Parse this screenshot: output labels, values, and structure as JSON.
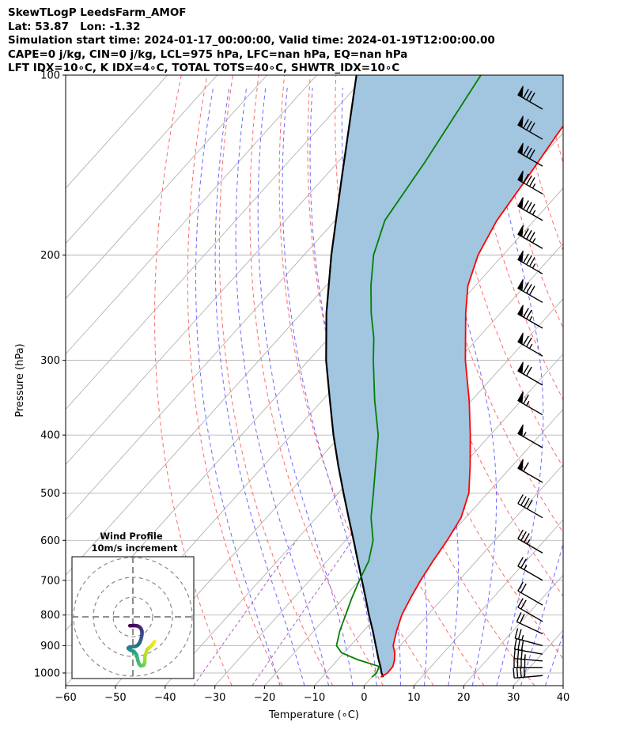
{
  "header": {
    "line1": "SkewTLogP LeedsFarm_AMOF",
    "line2": "Lat: 53.87   Lon: -1.32",
    "line3": "Simulation start time: 2024-01-17_00:00:00, Valid time: 2024-01-19T12:00:00.00",
    "line4": "CAPE=0 j/kg, CIN=0 j/kg, LCL=975 hPa, LFC=nan hPa, EQ=nan hPa",
    "line5": "LFT IDX=10∘C, K IDX=4∘C, TOTAL TOTS=40∘C, SHWTR_IDX=10∘C"
  },
  "chart_data": [
    {
      "type": "line",
      "subtype": "skew-T log-P",
      "xlabel": "Temperature (∘C)",
      "ylabel": "Pressure (hPa)",
      "xlim": [
        -60,
        40
      ],
      "ylim": [
        1050,
        100
      ],
      "y_scale": "log",
      "grid": true,
      "x_ticks": [
        -60,
        -50,
        -40,
        -30,
        -20,
        -10,
        0,
        10,
        20,
        30,
        40
      ],
      "x_tick_labels": [
        "−60",
        "−50",
        "−40",
        "−30",
        "−20",
        "−10",
        "0",
        "10",
        "20",
        "30",
        "40"
      ],
      "y_ticks": [
        100,
        200,
        300,
        400,
        500,
        600,
        700,
        800,
        900,
        1000
      ],
      "y_tick_labels": [
        "100",
        "200",
        "300",
        "400",
        "500",
        "600",
        "700",
        "800",
        "900",
        "1000"
      ],
      "colors": {
        "temperature": "#ff0000",
        "dewpoint": "#008000",
        "parcel": "#000000",
        "cape_fill": "#a2c5e0",
        "dry_adiabat": "#ff6a6a",
        "moist_adiabat": "#6a6aff",
        "mixing_ratio": "#b05ec8",
        "isotherm": "#aaaaaa"
      },
      "series": [
        {
          "key": "temperature",
          "points": [
            [
              1016,
              1.8
            ],
            [
              1000,
              2.4
            ],
            [
              975,
              2.3
            ],
            [
              950,
              1.4
            ],
            [
              925,
              0.2
            ],
            [
              900,
              -1.4
            ],
            [
              850,
              -3.4
            ],
            [
              800,
              -5.2
            ],
            [
              750,
              -6.5
            ],
            [
              700,
              -7.7
            ],
            [
              650,
              -8.7
            ],
            [
              600,
              -9.6
            ],
            [
              550,
              -10.9
            ],
            [
              500,
              -13.8
            ],
            [
              450,
              -18.5
            ],
            [
              400,
              -24.0
            ],
            [
              350,
              -30.5
            ],
            [
              300,
              -38.5
            ],
            [
              250,
              -47.0
            ],
            [
              225,
              -51.5
            ],
            [
              200,
              -55.0
            ],
            [
              175,
              -57.5
            ],
            [
              150,
              -59.0
            ],
            [
              125,
              -61.0
            ],
            [
              100,
              -63.0
            ]
          ]
        },
        {
          "key": "dewpoint",
          "points": [
            [
              1016,
              0.0
            ],
            [
              1000,
              0.2
            ],
            [
              975,
              -0.5
            ],
            [
              950,
              -6.0
            ],
            [
              925,
              -10.5
            ],
            [
              900,
              -12.8
            ],
            [
              850,
              -14.8
            ],
            [
              800,
              -16.5
            ],
            [
              750,
              -18.3
            ],
            [
              700,
              -20.0
            ],
            [
              650,
              -21.6
            ],
            [
              600,
              -24.5
            ],
            [
              550,
              -29.0
            ],
            [
              500,
              -33.0
            ],
            [
              450,
              -37.5
            ],
            [
              400,
              -42.5
            ],
            [
              350,
              -49.5
            ],
            [
              300,
              -57.0
            ],
            [
              275,
              -61.0
            ],
            [
              250,
              -66.0
            ],
            [
              225,
              -71.0
            ],
            [
              200,
              -76.0
            ],
            [
              175,
              -80.0
            ],
            [
              160,
              -81.0
            ],
            [
              140,
              -82.5
            ],
            [
              100,
              -87.0
            ]
          ]
        },
        {
          "key": "parcel",
          "points": [
            [
              1016,
              2.3
            ],
            [
              1000,
              1.2
            ],
            [
              975,
              -0.2
            ],
            [
              950,
              -1.8
            ],
            [
              900,
              -4.9
            ],
            [
              850,
              -8.2
            ],
            [
              800,
              -11.8
            ],
            [
              750,
              -15.5
            ],
            [
              700,
              -19.5
            ],
            [
              650,
              -23.8
            ],
            [
              600,
              -28.4
            ],
            [
              550,
              -33.5
            ],
            [
              500,
              -39.0
            ],
            [
              450,
              -45.0
            ],
            [
              400,
              -51.5
            ],
            [
              350,
              -58.5
            ],
            [
              300,
              -66.5
            ],
            [
              250,
              -75.0
            ],
            [
              200,
              -84.5
            ],
            [
              150,
              -96.0
            ],
            [
              100,
              -112.0
            ]
          ]
        }
      ],
      "wind_barbs": [
        {
          "p": 1010,
          "speed_kt": 40,
          "dir_deg": 265
        },
        {
          "p": 980,
          "speed_kt": 40,
          "dir_deg": 270
        },
        {
          "p": 955,
          "speed_kt": 35,
          "dir_deg": 275
        },
        {
          "p": 930,
          "speed_kt": 30,
          "dir_deg": 280
        },
        {
          "p": 900,
          "speed_kt": 25,
          "dir_deg": 285
        },
        {
          "p": 860,
          "speed_kt": 20,
          "dir_deg": 295
        },
        {
          "p": 820,
          "speed_kt": 20,
          "dir_deg": 300
        },
        {
          "p": 770,
          "speed_kt": 20,
          "dir_deg": 300
        },
        {
          "p": 700,
          "speed_kt": 25,
          "dir_deg": 300
        },
        {
          "p": 630,
          "speed_kt": 35,
          "dir_deg": 300
        },
        {
          "p": 550,
          "speed_kt": 40,
          "dir_deg": 300
        },
        {
          "p": 480,
          "speed_kt": 60,
          "dir_deg": 300
        },
        {
          "p": 420,
          "speed_kt": 55,
          "dir_deg": 300
        },
        {
          "p": 370,
          "speed_kt": 65,
          "dir_deg": 300
        },
        {
          "p": 330,
          "speed_kt": 70,
          "dir_deg": 300
        },
        {
          "p": 295,
          "speed_kt": 75,
          "dir_deg": 300
        },
        {
          "p": 265,
          "speed_kt": 75,
          "dir_deg": 300
        },
        {
          "p": 240,
          "speed_kt": 80,
          "dir_deg": 300
        },
        {
          "p": 215,
          "speed_kt": 85,
          "dir_deg": 300
        },
        {
          "p": 195,
          "speed_kt": 85,
          "dir_deg": 300
        },
        {
          "p": 175,
          "speed_kt": 85,
          "dir_deg": 300
        },
        {
          "p": 158,
          "speed_kt": 85,
          "dir_deg": 300
        },
        {
          "p": 142,
          "speed_kt": 80,
          "dir_deg": 300
        },
        {
          "p": 128,
          "speed_kt": 80,
          "dir_deg": 300
        },
        {
          "p": 114,
          "speed_kt": 80,
          "dir_deg": 300
        }
      ]
    },
    {
      "type": "scatter",
      "subtype": "hodograph",
      "title": "Wind Profile",
      "subtitle": "10m/s increment",
      "ring_step_ms": 10,
      "rings": [
        10,
        20,
        30
      ],
      "colormap": "viridis (low level yellow, upper level purple)",
      "points_uv": [
        [
          11.0,
          -12.5
        ],
        [
          9.5,
          -14.5
        ],
        [
          7.2,
          -16.5
        ],
        [
          6.1,
          -20.0
        ],
        [
          6.0,
          -23.0
        ],
        [
          5.5,
          -24.5
        ],
        [
          4.0,
          -24.8
        ],
        [
          3.2,
          -24.0
        ],
        [
          2.5,
          -22.0
        ],
        [
          1.8,
          -19.0
        ],
        [
          0.5,
          -17.5
        ],
        [
          -0.8,
          -17.0
        ],
        [
          -1.8,
          -16.5
        ],
        [
          -2.4,
          -15.8
        ],
        [
          -1.6,
          -15.2
        ],
        [
          1.2,
          -15.0
        ],
        [
          2.5,
          -14.3
        ],
        [
          3.5,
          -13.0
        ],
        [
          4.2,
          -11.0
        ],
        [
          4.6,
          -9.0
        ],
        [
          4.6,
          -7.2
        ],
        [
          4.0,
          -5.8
        ],
        [
          3.2,
          -5.0
        ],
        [
          2.0,
          -4.5
        ],
        [
          0.5,
          -4.4
        ],
        [
          -1.5,
          -4.5
        ]
      ]
    }
  ]
}
